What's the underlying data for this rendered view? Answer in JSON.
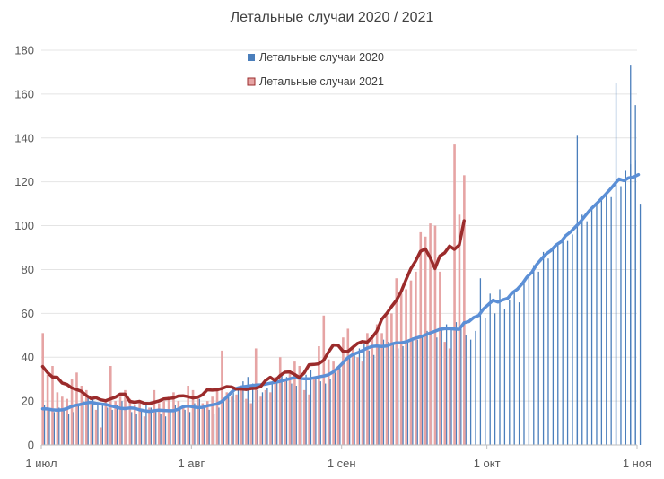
{
  "chart_data": {
    "type": "bar",
    "title": "Летальные случаи 2020 / 2021",
    "xlabel": "",
    "ylabel": "",
    "ylim": [
      0,
      180
    ],
    "yticks": [
      0,
      20,
      40,
      60,
      80,
      100,
      120,
      140,
      160,
      180
    ],
    "x_tick_labels": [
      "1 июл",
      "1 авг",
      "1 сен",
      "1 окт",
      "1 ноя"
    ],
    "x_tick_day_index": [
      0,
      31,
      62,
      92,
      123
    ],
    "legend": {
      "position": "top-center",
      "entries": [
        "Летальные случаи 2020",
        "Летальные случаи 2021"
      ]
    },
    "colors": {
      "bars_2020": "#4a7ebb",
      "bars_2021": "#e6a4a4",
      "line_2020": "#5b8fd6",
      "line_2021": "#9b2b2b",
      "axis": "#bfbfbf",
      "text": "#595959"
    },
    "series": [
      {
        "name": "Летальные случаи 2020",
        "kind": "bar",
        "values": [
          18,
          16,
          15,
          17,
          16,
          14,
          15,
          19,
          20,
          22,
          21,
          19,
          18,
          17,
          16,
          18,
          20,
          17,
          15,
          14,
          16,
          18,
          17,
          15,
          14,
          13,
          16,
          18,
          17,
          16,
          15,
          19,
          21,
          18,
          16,
          14,
          17,
          20,
          22,
          24,
          26,
          29,
          31,
          28,
          25,
          24,
          26,
          28,
          30,
          33,
          31,
          28,
          27,
          30,
          32,
          34,
          31,
          29,
          28,
          30,
          33,
          35,
          38,
          40,
          42,
          44,
          46,
          43,
          41,
          45,
          48,
          47,
          46,
          44,
          45,
          47,
          49,
          48,
          50,
          52,
          50,
          49,
          53,
          55,
          54,
          56,
          54,
          50,
          48,
          52,
          76,
          58,
          69,
          60,
          71,
          62,
          66,
          70,
          65,
          74,
          78,
          82,
          79,
          88,
          85,
          90,
          92,
          94,
          93,
          96,
          98,
          105,
          102,
          108,
          110,
          112,
          115,
          113,
          120,
          118,
          125,
          128,
          130,
          110
        ],
        "line_window": 7
      },
      {
        "name": "Летальные случаи 2021",
        "kind": "bar",
        "values": [
          51,
          32,
          36,
          24,
          22,
          21,
          30,
          33,
          27,
          25,
          19,
          16,
          8,
          20,
          36,
          20,
          22,
          25,
          21,
          18,
          20,
          13,
          17,
          25,
          19,
          20,
          22,
          24,
          20,
          18,
          27,
          25,
          21,
          19,
          20,
          22,
          26,
          43,
          24,
          22,
          23,
          26,
          21,
          19,
          44,
          22,
          25,
          24,
          31,
          40,
          30,
          33,
          38,
          36,
          25,
          23,
          30,
          45,
          59,
          39,
          38,
          36,
          49,
          53,
          44,
          40,
          38,
          51,
          49,
          55,
          51,
          59,
          60,
          76,
          69,
          71,
          75,
          79,
          97,
          95,
          101,
          100,
          79,
          47,
          44,
          137,
          105,
          123
        ],
        "line_window": 7
      }
    ],
    "extra_2020_spikes": [
      {
        "day": 110,
        "value": 141
      },
      {
        "day": 118,
        "value": 165
      },
      {
        "day": 121,
        "value": 173
      },
      {
        "day": 122,
        "value": 155
      }
    ]
  }
}
